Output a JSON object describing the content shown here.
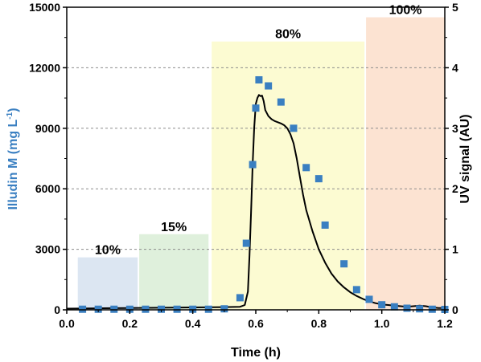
{
  "chart_data": {
    "type": "scatter",
    "xlabel": "Time (h)",
    "ylabel_left_main": "Illudin M (mg L",
    "ylabel_left_sup": "-1",
    "ylabel_left_tail": ")",
    "ylabel_right": "UV signal (AU)",
    "xlim": [
      0.0,
      1.2
    ],
    "ylim_left": [
      0,
      15000
    ],
    "ylim_right": [
      0,
      5
    ],
    "xticks": [
      "0.0",
      "0.2",
      "0.4",
      "0.6",
      "0.8",
      "1.0",
      "1.2"
    ],
    "xtick_values": [
      0.0,
      0.2,
      0.4,
      0.6,
      0.8,
      1.0,
      1.2
    ],
    "yticks_left": [
      "0",
      "3000",
      "6000",
      "9000",
      "12000",
      "15000"
    ],
    "ytick_left_values": [
      0,
      3000,
      6000,
      9000,
      12000,
      15000
    ],
    "yticks_right": [
      "0",
      "1",
      "2",
      "3",
      "4",
      "5"
    ],
    "ytick_right_values": [
      0,
      1,
      2,
      3,
      4,
      5
    ],
    "grid": "horizontal-dashed",
    "left_axis_color": "#3a7fc1",
    "regions": [
      {
        "label": "10%",
        "x0": 0.035,
        "x1": 0.225,
        "top": 2600,
        "color": "#dce6f2"
      },
      {
        "label": "15%",
        "x0": 0.23,
        "x1": 0.45,
        "top": 3750,
        "color": "#dff0dc"
      },
      {
        "label": "80%",
        "x0": 0.46,
        "x1": 0.945,
        "top": 13300,
        "color": "#fcfbd2"
      },
      {
        "label": "100%",
        "x0": 0.95,
        "x1": 1.2,
        "top": 14500,
        "color": "#fce3d2"
      }
    ],
    "series": [
      {
        "axis": "left",
        "marker": "square",
        "color": "#3a7fc1",
        "x": [
          0.05,
          0.1,
          0.15,
          0.2,
          0.25,
          0.3,
          0.35,
          0.4,
          0.45,
          0.5,
          0.55,
          0.57,
          0.59,
          0.6,
          0.61,
          0.64,
          0.68,
          0.72,
          0.76,
          0.8,
          0.82,
          0.88,
          0.92,
          0.96,
          1.0,
          1.04,
          1.08,
          1.12,
          1.16,
          1.2
        ],
        "y": [
          30,
          30,
          30,
          30,
          30,
          30,
          30,
          30,
          30,
          50,
          600,
          3300,
          7200,
          10000,
          11400,
          11100,
          10300,
          9000,
          7050,
          6500,
          4200,
          2280,
          1000,
          520,
          250,
          150,
          80,
          50,
          30,
          20
        ]
      },
      {
        "axis": "right",
        "marker": "line",
        "color": "#000000",
        "x": [
          0.0,
          0.1,
          0.2,
          0.3,
          0.4,
          0.5,
          0.55,
          0.565,
          0.575,
          0.58,
          0.585,
          0.59,
          0.595,
          0.6,
          0.605,
          0.61,
          0.615,
          0.62,
          0.625,
          0.63,
          0.64,
          0.65,
          0.66,
          0.67,
          0.68,
          0.69,
          0.7,
          0.71,
          0.72,
          0.73,
          0.74,
          0.75,
          0.76,
          0.78,
          0.8,
          0.82,
          0.84,
          0.86,
          0.88,
          0.9,
          0.92,
          0.94,
          0.96,
          0.98,
          1.0,
          1.04,
          1.08,
          1.1,
          1.12,
          1.14,
          1.16,
          1.18,
          1.2
        ],
        "y": [
          0.02,
          0.025,
          0.03,
          0.035,
          0.04,
          0.045,
          0.05,
          0.08,
          0.3,
          0.9,
          1.6,
          2.4,
          3.0,
          3.4,
          3.5,
          3.55,
          3.53,
          3.54,
          3.45,
          3.3,
          3.2,
          3.15,
          3.12,
          3.1,
          3.08,
          3.05,
          3.0,
          2.9,
          2.75,
          2.5,
          2.2,
          1.9,
          1.65,
          1.3,
          1.0,
          0.78,
          0.6,
          0.47,
          0.37,
          0.29,
          0.23,
          0.18,
          0.14,
          0.11,
          0.09,
          0.07,
          0.05,
          0.06,
          0.07,
          0.06,
          0.04,
          0.03,
          0.03
        ]
      }
    ]
  }
}
